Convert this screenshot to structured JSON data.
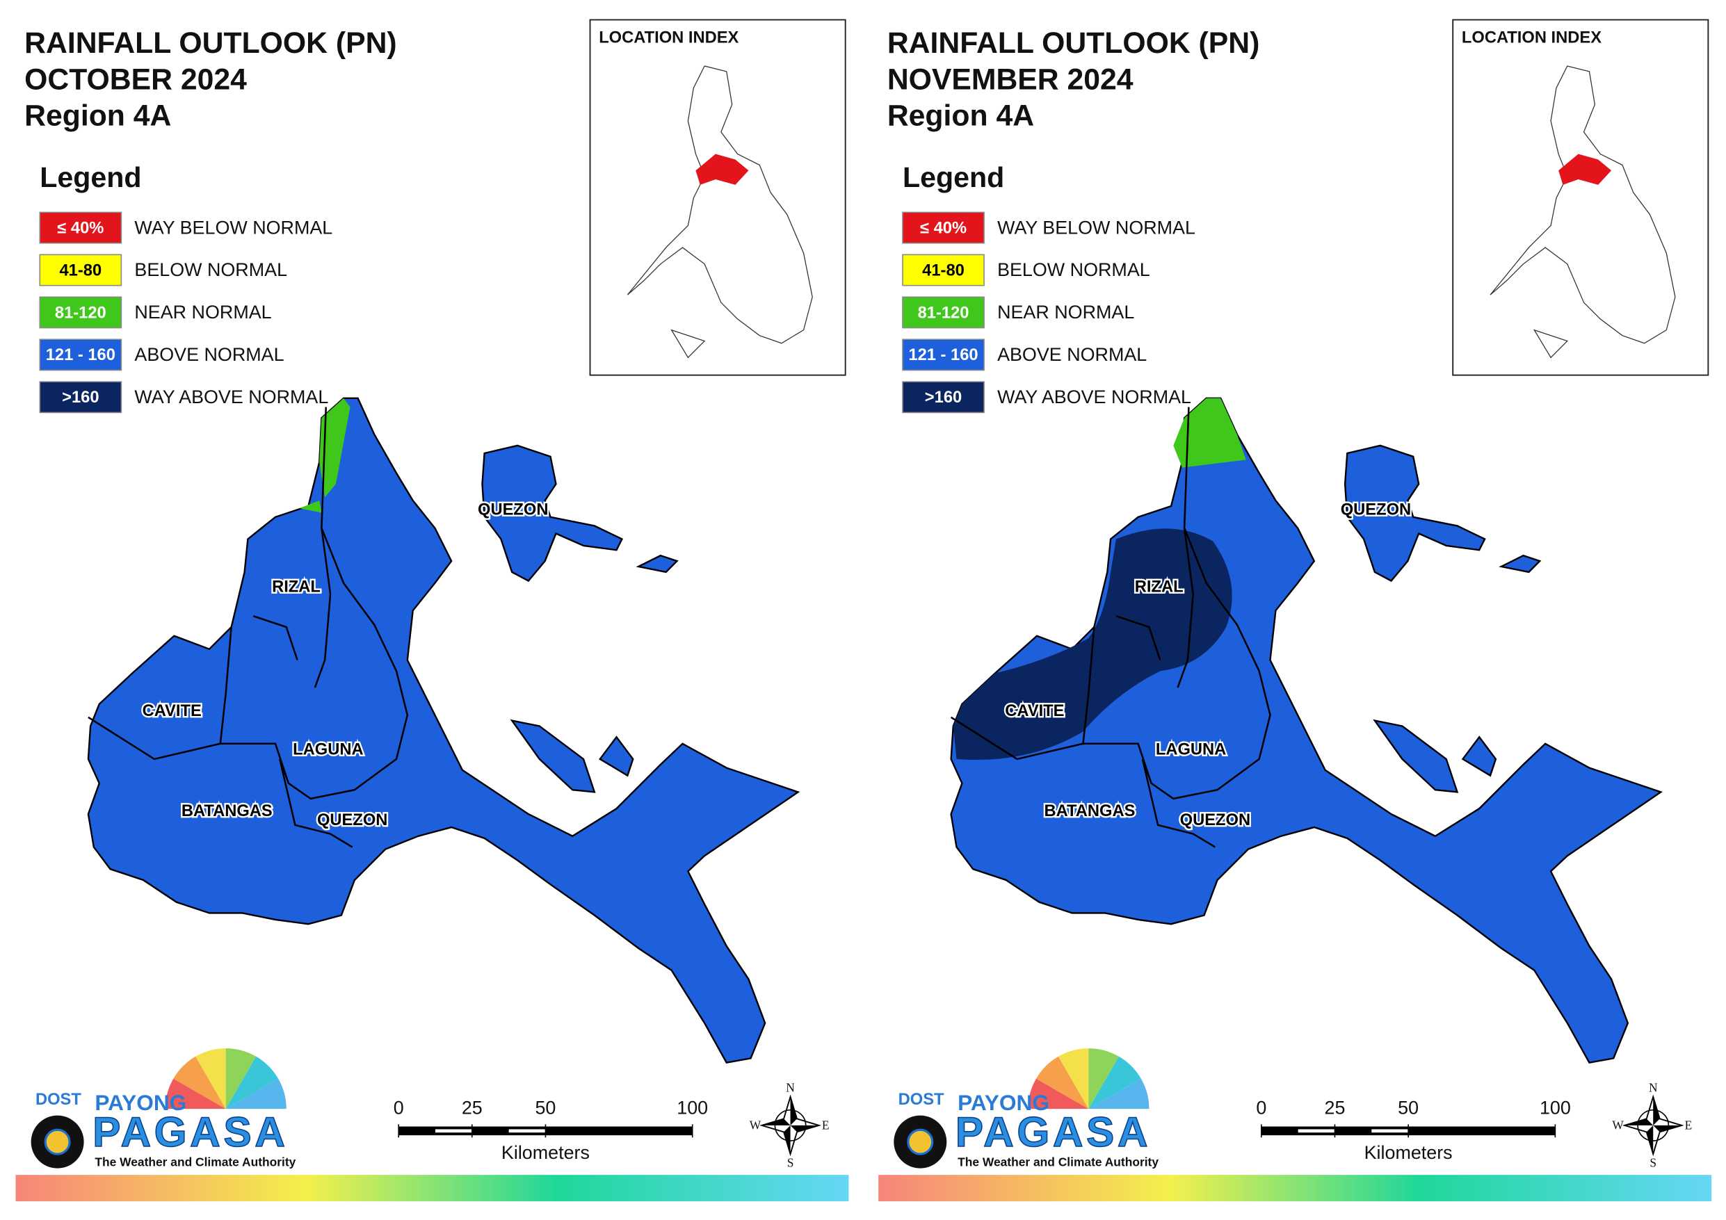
{
  "panels": [
    {
      "title": [
        "RAINFALL OUTLOOK (PN)",
        "OCTOBER 2024",
        "Region 4A"
      ],
      "overlay": false
    },
    {
      "title": [
        "RAINFALL OUTLOOK (PN)",
        "NOVEMBER 2024",
        "Region 4A"
      ],
      "overlay": true
    }
  ],
  "legend": {
    "title": "Legend",
    "items": [
      {
        "range": "≤ 40%",
        "label": "WAY BELOW NORMAL",
        "color": "#e3141b"
      },
      {
        "range": "41-80",
        "label": "BELOW NORMAL",
        "color": "#ffff00"
      },
      {
        "range": "81-120",
        "label": "NEAR NORMAL",
        "color": "#3fc71c"
      },
      {
        "range": "121 - 160",
        "label": "ABOVE NORMAL",
        "color": "#1e5fdc"
      },
      {
        "range": ">160",
        "label": "WAY ABOVE NORMAL",
        "color": "#0b2560"
      }
    ]
  },
  "location_index": "LOCATION INDEX",
  "provinces": [
    "QUEZON",
    "RIZAL",
    "CAVITE",
    "LAGUNA",
    "BATANGAS",
    "QUEZON"
  ],
  "scale": {
    "ticks": [
      0,
      25,
      50,
      100
    ],
    "unit": "Kilometers"
  },
  "compass": [
    "N",
    "E",
    "S",
    "W"
  ],
  "logo": {
    "agency": "DOST",
    "brand": "PAYONG",
    "name": "PAGASA",
    "tagline": "The Weather and Climate Authority"
  }
}
